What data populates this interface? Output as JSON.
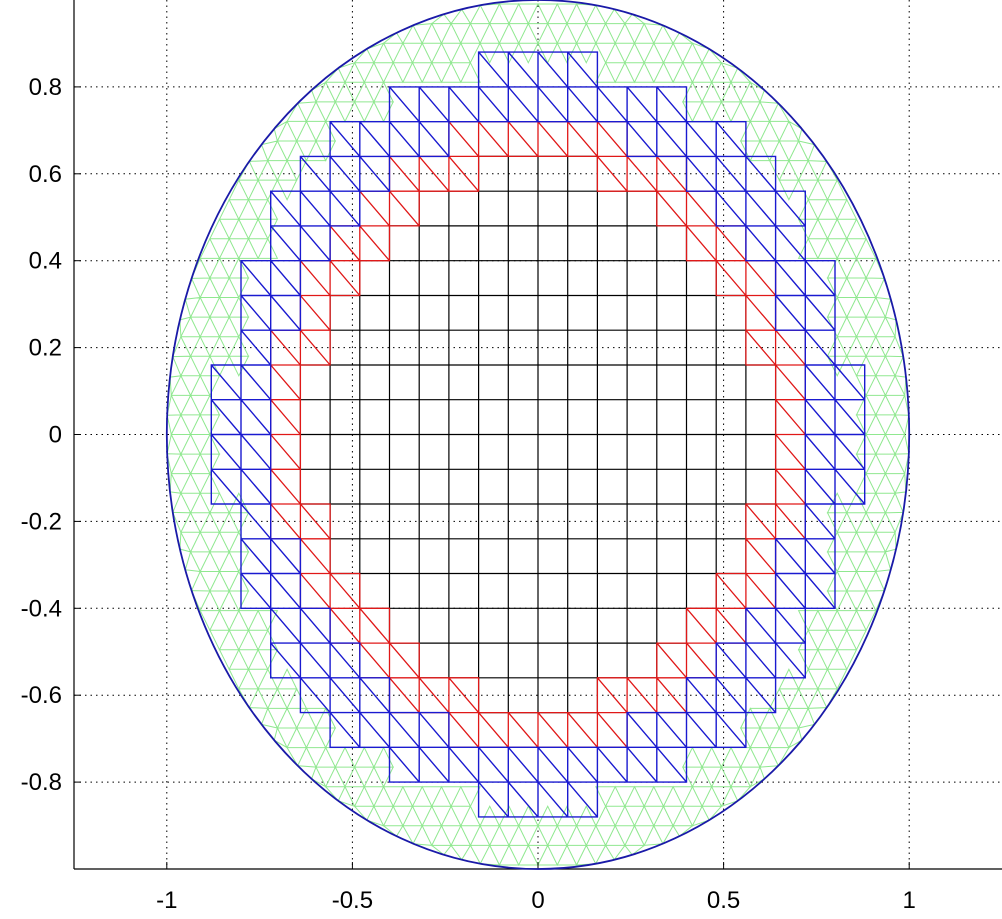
{
  "figure": {
    "type": "mesh-plot",
    "x_range": [
      -1.25,
      1.25
    ],
    "y_range": [
      -1.0,
      1.0
    ],
    "grid": true,
    "grid_style": "dotted",
    "circle": {
      "center": [
        0,
        0
      ],
      "radius": 1
    },
    "cell_size": 0.08,
    "colors": {
      "background": "#ffffff",
      "axis": "#000000",
      "grid": "#000000",
      "circle": "#1a1aa8",
      "fem_mesh": "#90e890",
      "blue_cells": "#1a1ad0",
      "red_cells": "#e01818",
      "interior_cells": "#000000"
    },
    "x_ticks": [
      {
        "value": -1,
        "label": "-1"
      },
      {
        "value": -0.5,
        "label": "-0.5"
      },
      {
        "value": 0,
        "label": "0"
      },
      {
        "value": 0.5,
        "label": "0.5"
      },
      {
        "value": 1,
        "label": "1"
      }
    ],
    "y_ticks": [
      {
        "value": 0.8,
        "label": "0.8"
      },
      {
        "value": 0.6,
        "label": "0.6"
      },
      {
        "value": 0.4,
        "label": "0.4"
      },
      {
        "value": 0.2,
        "label": "0.2"
      },
      {
        "value": 0,
        "label": "0"
      },
      {
        "value": -0.2,
        "label": "-0.2"
      },
      {
        "value": -0.4,
        "label": "-0.4"
      },
      {
        "value": -0.6,
        "label": "-0.6"
      },
      {
        "value": -0.8,
        "label": "-0.8"
      }
    ],
    "layers": {
      "fem_mesh": "outer annulus triangulation between blue boundary and circle",
      "blue_cells": "outermost layer of cut cells, drawn with diagonals",
      "red_cells": "inner cut-cell layer, drawn with diagonals",
      "interior_cells": "interior square grid"
    }
  }
}
